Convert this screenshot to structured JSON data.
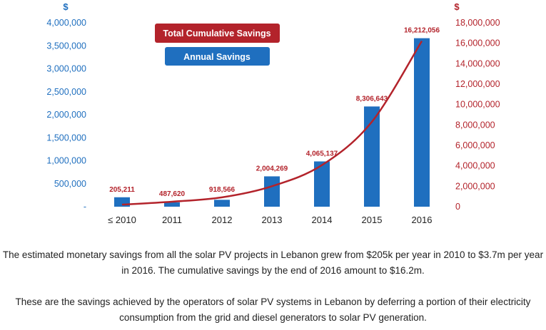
{
  "chart_data": {
    "type": "bar+line",
    "categories": [
      "≤ 2010",
      "2011",
      "2012",
      "2013",
      "2014",
      "2015",
      "2016"
    ],
    "series": [
      {
        "name": "Annual Savings",
        "type": "bar",
        "axis": "left",
        "values": [
          205211,
          95000,
          150000,
          660000,
          985000,
          2180000,
          3665000
        ]
      },
      {
        "name": "Total Cumulative Savings",
        "type": "line",
        "axis": "right",
        "values": [
          205211,
          487620,
          918566,
          2004269,
          4065137,
          8306643,
          16212056
        ],
        "labels": [
          "205,211",
          "487,620",
          "918,566",
          "2,004,269",
          "4,065,137",
          "8,306,643",
          "16,212,056"
        ]
      }
    ],
    "left_axis": {
      "unit": "$",
      "ylim": [
        0,
        4000000
      ],
      "ticks": [
        "4,000,000",
        "3,500,000",
        "3,000,000",
        "2,500,000",
        "2,000,000",
        "1,500,000",
        "1,000,000",
        "500,000",
        "-"
      ],
      "color": "#1f6fbf"
    },
    "right_axis": {
      "unit": "$",
      "ylim": [
        0,
        18000000
      ],
      "ticks": [
        "18,000,000",
        "16,000,000",
        "14,000,000",
        "12,000,000",
        "10,000,000",
        "8,000,000",
        "6,000,000",
        "4,000,000",
        "2,000,000",
        "0"
      ],
      "color": "#b3232b"
    },
    "legend": [
      {
        "label": "Total Cumulative Savings",
        "color": "#b3232b"
      },
      {
        "label": "Annual Savings",
        "color": "#1f6fbf"
      }
    ],
    "grid": false,
    "legend_position": "top-left"
  },
  "captions": [
    "The estimated monetary savings from all the solar PV projects in Lebanon grew from $205k per year in 2010 to $3.7m per year in 2016. The cumulative savings by the end of 2016 amount to $16.2m.",
    "These are the savings achieved by the operators of solar PV systems in Lebanon by deferring a portion of their electricity consumption from the grid and diesel generators to solar PV generation."
  ]
}
